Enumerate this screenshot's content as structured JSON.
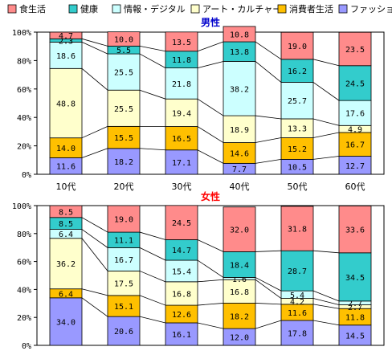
{
  "legend": [
    {
      "label": "食生活",
      "color": "#ff8b8b"
    },
    {
      "label": "健康",
      "color": "#33cccc"
    },
    {
      "label": "情報・デジタル",
      "color": "#ccffff"
    },
    {
      "label": "アート・カルチャー",
      "color": "#ffffcc"
    },
    {
      "label": "消費者生活",
      "color": "#ffc000"
    },
    {
      "label": "ファッション",
      "color": "#9999ff"
    }
  ],
  "chart_data": [
    {
      "type": "bar",
      "stacked": "100%",
      "title": "男性",
      "title_color": "#0000cc",
      "categories": [
        "10代",
        "20代",
        "30代",
        "40代",
        "50代",
        "60代"
      ],
      "ylim": [
        0,
        100
      ],
      "yticks": [
        "0%",
        "20%",
        "40%",
        "60%",
        "80%",
        "100%"
      ],
      "series": [
        {
          "name": "ファッション",
          "values": [
            11.6,
            18.2,
            17.1,
            7.7,
            10.5,
            12.7
          ]
        },
        {
          "name": "消費者生活",
          "values": [
            14.0,
            15.5,
            16.5,
            14.6,
            15.2,
            16.7
          ]
        },
        {
          "name": "アート・カルチャー",
          "values": [
            48.8,
            25.5,
            19.4,
            18.9,
            13.3,
            4.9
          ]
        },
        {
          "name": "情報・デジタル",
          "values": [
            18.6,
            25.5,
            21.8,
            38.2,
            25.7,
            17.6
          ]
        },
        {
          "name": "健康",
          "values": [
            2.3,
            5.5,
            11.8,
            13.8,
            16.2,
            24.5
          ]
        },
        {
          "name": "食生活",
          "values": [
            4.7,
            10.0,
            13.5,
            10.8,
            19.0,
            23.5
          ]
        }
      ]
    },
    {
      "type": "bar",
      "stacked": "100%",
      "title": "女性",
      "title_color": "#ff0000",
      "categories": [
        "10代",
        "20代",
        "30代",
        "40代",
        "50代",
        "60代"
      ],
      "ylim": [
        0,
        100
      ],
      "yticks": [
        "0%",
        "20%",
        "40%",
        "60%",
        "80%",
        "100%"
      ],
      "series": [
        {
          "name": "ファッション",
          "values": [
            34.0,
            20.6,
            16.1,
            12.0,
            17.8,
            14.5
          ]
        },
        {
          "name": "消費者生活",
          "values": [
            6.4,
            15.1,
            12.6,
            18.2,
            11.6,
            11.8
          ]
        },
        {
          "name": "アート・カルチャー",
          "values": [
            36.2,
            17.5,
            16.8,
            16.8,
            4.2,
            2.7
          ]
        },
        {
          "name": "情報・デジタル",
          "values": [
            6.4,
            16.7,
            15.4,
            1.6,
            5.4,
            2.7
          ]
        },
        {
          "name": "健康",
          "values": [
            8.5,
            11.1,
            14.7,
            18.4,
            28.7,
            34.5
          ]
        },
        {
          "name": "食生活",
          "values": [
            8.5,
            19.0,
            24.5,
            32.0,
            31.8,
            33.6
          ]
        }
      ]
    }
  ]
}
